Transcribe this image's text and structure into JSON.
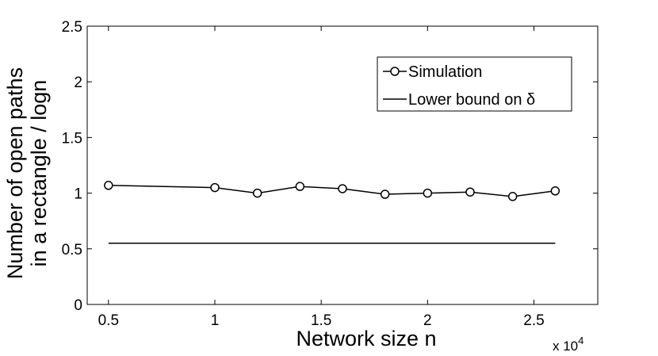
{
  "chart_data": {
    "type": "line",
    "xlabel": "Network size n",
    "ylabel_lines": [
      "Number of open paths",
      "in a rectangle / logn"
    ],
    "x_multiplier_label": "x 10",
    "x_multiplier_exponent": "4",
    "xlim": [
      0.4,
      2.8
    ],
    "ylim": [
      0,
      2.5
    ],
    "x_ticks": [
      {
        "value": 0.5,
        "label": "0.5"
      },
      {
        "value": 1,
        "label": "1"
      },
      {
        "value": 1.5,
        "label": "1.5"
      },
      {
        "value": 2,
        "label": "2"
      },
      {
        "value": 2.5,
        "label": "2.5"
      }
    ],
    "y_ticks": [
      {
        "value": 0,
        "label": "0"
      },
      {
        "value": 0.5,
        "label": "0.5"
      },
      {
        "value": 1,
        "label": "1"
      },
      {
        "value": 1.5,
        "label": "1.5"
      },
      {
        "value": 2,
        "label": "2"
      },
      {
        "value": 2.5,
        "label": "2.5"
      }
    ],
    "grid": false,
    "legend_position": "top-right",
    "series": [
      {
        "name": "Simulation",
        "marker": "circle",
        "color": "#000000",
        "x": [
          0.5,
          1.0,
          1.2,
          1.4,
          1.6,
          1.8,
          2.0,
          2.2,
          2.4,
          2.6
        ],
        "y": [
          1.07,
          1.05,
          1.0,
          1.06,
          1.04,
          0.99,
          1.0,
          1.01,
          0.97,
          1.02
        ]
      },
      {
        "name": "Lower bound on δ",
        "marker": "none",
        "color": "#000000",
        "x": [
          0.5,
          2.6
        ],
        "y": [
          0.55,
          0.55
        ]
      }
    ]
  }
}
